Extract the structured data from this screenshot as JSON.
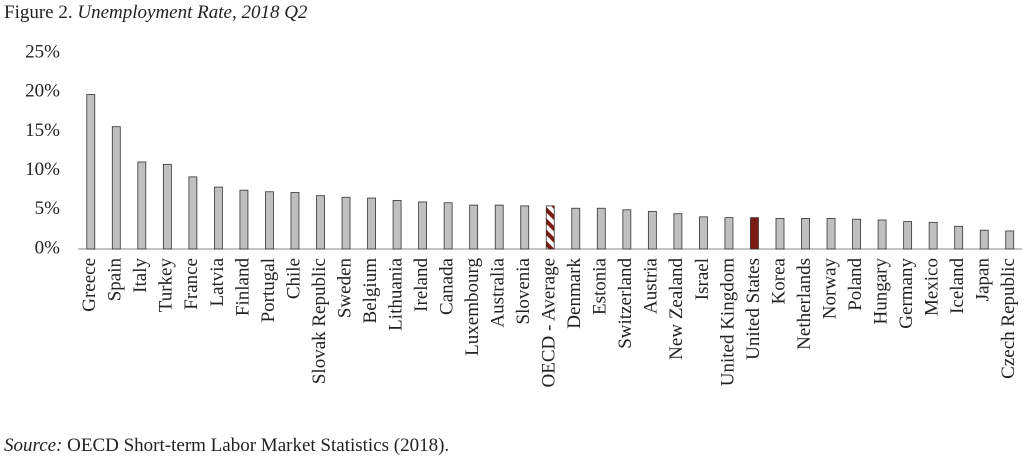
{
  "chart_data": {
    "type": "bar",
    "title_prefix": "Figure 2.",
    "title": "Unemployment Rate, 2018 Q2",
    "source_label": "Source:",
    "source": "OECD Short-term Labor Market Statistics (2018).",
    "categories": [
      "Greece",
      "Spain",
      "Italy",
      "Turkey",
      "France",
      "Latvia",
      "Finland",
      "Portugal",
      "Chile",
      "Slovak Republic",
      "Sweden",
      "Belgium",
      "Lithuania",
      "Ireland",
      "Canada",
      "Luxembourg",
      "Australia",
      "Slovenia",
      "OECD - Average",
      "Denmark",
      "Estonia",
      "Switzerland",
      "Austria",
      "New Zealand",
      "Israel",
      "United Kingdom",
      "United States",
      "Korea",
      "Netherlands",
      "Norway",
      "Poland",
      "Hungary",
      "Germany",
      "Mexico",
      "Iceland",
      "Japan",
      "Czech Republic"
    ],
    "values": [
      19.7,
      15.6,
      11.1,
      10.8,
      9.2,
      7.9,
      7.5,
      7.3,
      7.2,
      6.8,
      6.6,
      6.5,
      6.2,
      6.0,
      5.9,
      5.6,
      5.6,
      5.5,
      5.5,
      5.2,
      5.2,
      5.0,
      4.8,
      4.5,
      4.1,
      4.0,
      4.0,
      3.9,
      3.9,
      3.9,
      3.8,
      3.7,
      3.5,
      3.4,
      2.9,
      2.4,
      2.3
    ],
    "color": "#c0c0c0",
    "highlight_category": "United States",
    "highlight_color": "#7b1a12",
    "hatched_category": "OECD - Average",
    "ylim": [
      0,
      25
    ],
    "yticks": [
      {
        "value": 0,
        "label": "0%"
      },
      {
        "value": 5,
        "label": "5%"
      },
      {
        "value": 10,
        "label": "10%"
      },
      {
        "value": 15,
        "label": "15%"
      },
      {
        "value": 20,
        "label": "20%"
      },
      {
        "value": 25,
        "label": "25%"
      }
    ],
    "grid": false
  }
}
